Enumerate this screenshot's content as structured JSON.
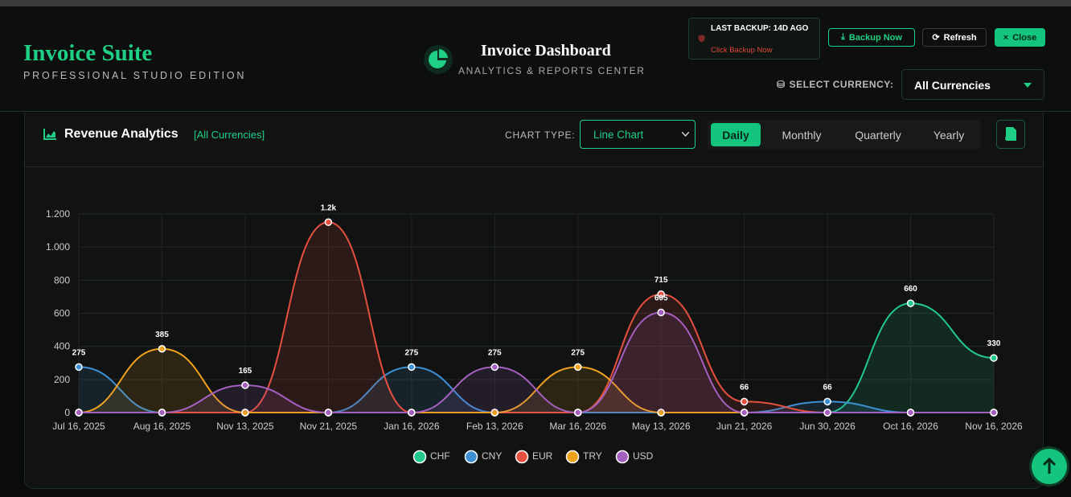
{
  "header": {
    "title": "Invoice Suite",
    "subtitle": "PROFESSIONAL STUDIO EDITION",
    "dashboard_title": "Invoice Dashboard",
    "dashboard_subtitle": "ANALYTICS & REPORTS CENTER",
    "backup_status": "LAST BACKUP: 14D AGO",
    "backup_hint": "Click Backup Now",
    "buttons": [
      "Backup Now",
      "Refresh",
      "Close"
    ],
    "currency_label": "SELECT CURRENCY:",
    "currency_value": "All Currencies"
  },
  "panel": {
    "title": "Revenue Analytics",
    "currency_tag": "[All Currencies]",
    "chart_type_label": "CHART TYPE:",
    "chart_type_value": "Line Chart",
    "periods": [
      "Daily",
      "Monthly",
      "Quarterly",
      "Yearly"
    ],
    "pdf_label": "PDF"
  },
  "chart_data": {
    "type": "line",
    "categories": [
      "Jul 16, 2025",
      "Aug 16, 2025",
      "Nov 13, 2025",
      "Nov 21, 2025",
      "Jan 16, 2026",
      "Feb 13, 2026",
      "Mar 16, 2026",
      "May 13, 2026",
      "Jun 21, 2026",
      "Jun 30, 2026",
      "Oct 16, 2026",
      "Nov 16, 2026"
    ],
    "series": [
      {
        "name": "CHF",
        "color": "#22c98a",
        "values": [
          0,
          0,
          0,
          0,
          0,
          0,
          0,
          0,
          0,
          0,
          660,
          330
        ],
        "value_labels": [
          null,
          null,
          null,
          null,
          null,
          null,
          null,
          null,
          null,
          null,
          "660",
          "330"
        ]
      },
      {
        "name": "CNY",
        "color": "#3d8fd4",
        "values": [
          275,
          0,
          0,
          0,
          275,
          0,
          0,
          0,
          0,
          66,
          0,
          0
        ],
        "value_labels": [
          "275",
          null,
          null,
          null,
          "275",
          null,
          null,
          null,
          null,
          "66",
          null,
          null
        ]
      },
      {
        "name": "EUR",
        "color": "#e5503f",
        "values": [
          0,
          0,
          0,
          1150,
          0,
          0,
          0,
          715,
          66,
          0,
          0,
          0
        ],
        "value_labels": [
          null,
          null,
          null,
          "1.2k",
          null,
          null,
          null,
          "715",
          "66",
          null,
          null,
          null
        ]
      },
      {
        "name": "TRY",
        "color": "#f0a21f",
        "values": [
          0,
          385,
          0,
          0,
          0,
          0,
          275,
          0,
          0,
          0,
          0,
          0
        ],
        "value_labels": [
          null,
          "385",
          null,
          null,
          null,
          null,
          "275",
          null,
          null,
          null,
          null,
          null
        ]
      },
      {
        "name": "USD",
        "color": "#a45fc0",
        "values": [
          0,
          0,
          165,
          0,
          0,
          275,
          0,
          605,
          0,
          0,
          0,
          0
        ],
        "value_labels": [
          null,
          null,
          "165",
          null,
          null,
          "275",
          null,
          "605",
          null,
          null,
          null,
          null
        ]
      }
    ],
    "ylim": [
      0,
      1200
    ],
    "yticks": [
      0,
      200,
      400,
      600,
      800,
      {
        "value": 1000,
        "label": "1.000"
      },
      {
        "value": 1200,
        "label": "1.200"
      }
    ],
    "grid": true,
    "legend": "bottom"
  }
}
